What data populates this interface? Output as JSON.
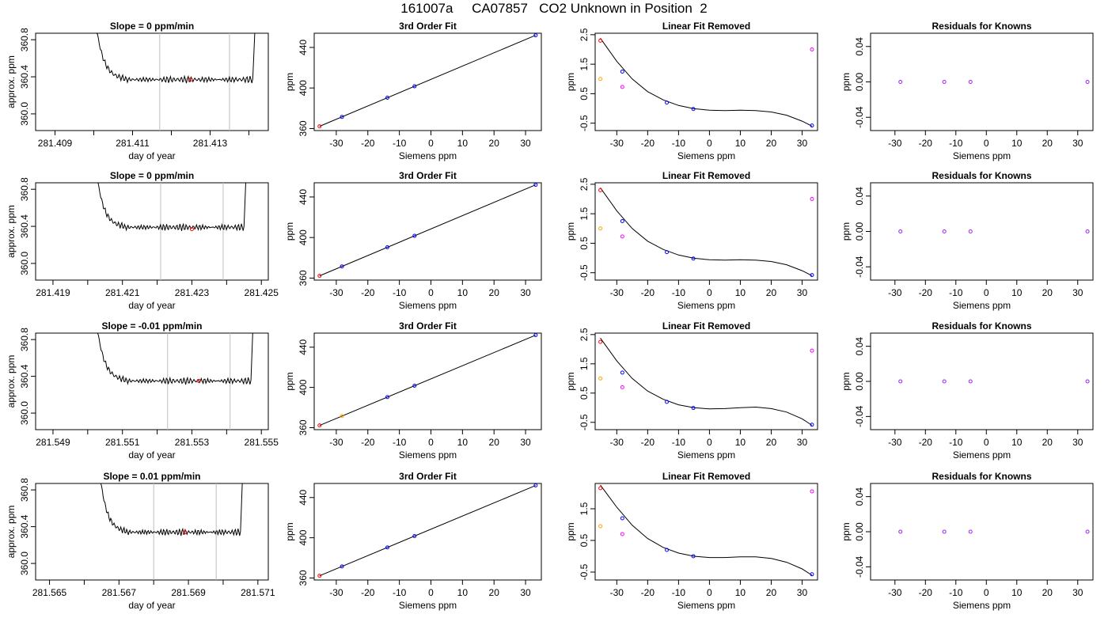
{
  "title": "161007a     CA07857   CO2 Unknown in Position  2",
  "ts_xlabel": "day of year",
  "ts_ylabel": "approx. ppm",
  "fit_title": "3rd Order Fit",
  "lin_title": "Linear Fit Removed",
  "res_title": "Residuals for Knowns",
  "siemens_xlabel": "Siemens ppm",
  "ppm_ylabel": "ppm",
  "colors": {
    "trace": "#000000",
    "gray_line": "#bebebe",
    "blue": "#0000ff",
    "red": "#ff0000",
    "orange": "#ffa500",
    "magenta": "#ff00ff",
    "purple": "#a020f0"
  },
  "chart_data": [
    {
      "type": "line",
      "panel": "timeseries",
      "row": 1,
      "title": "Slope =  0  ppm/min",
      "xlabel": "day of year",
      "ylabel": "approx. ppm",
      "xlim": [
        281.4085,
        281.4145
      ],
      "ylim": [
        359.82,
        360.87
      ],
      "x_ticks": [
        281.409,
        281.411,
        281.413
      ],
      "x_minor_ticks": [
        281.41,
        281.412,
        281.414
      ],
      "y_ticks": [
        360.0,
        360.4,
        360.8
      ],
      "plateau": 360.37,
      "trace_start": 281.41,
      "trace_end": 281.4141,
      "vlines": [
        281.4117,
        281.4135
      ],
      "marker": [
        281.4125,
        360.37
      ]
    },
    {
      "type": "scatter",
      "panel": "fit",
      "row": 1,
      "title": "3rd Order Fit",
      "xlabel": "Siemens ppm",
      "ylabel": "ppm",
      "xlim": [
        -37,
        35
      ],
      "ylim": [
        358,
        454
      ],
      "x_ticks": [
        -30,
        -20,
        -10,
        0,
        10,
        20,
        30
      ],
      "y_ticks": [
        360,
        400,
        440
      ],
      "points_blue": [
        [
          -28.2,
          371.4
        ],
        [
          -13.8,
          385.8
        ],
        [
          -5.2,
          394.4
        ],
        [
          33.2,
          432.8
        ]
      ],
      "points_red": [
        [
          -35.3,
          364.3
        ]
      ],
      "line": [
        [
          -35.3,
          362.2
        ],
        [
          33.2,
          452.0
        ]
      ]
    },
    {
      "type": "scatter",
      "panel": "linear_removed",
      "row": 1,
      "title": "Linear Fit Removed",
      "xlabel": "Siemens ppm",
      "ylabel": "ppm",
      "xlim": [
        -37,
        35
      ],
      "ylim": [
        -0.75,
        2.55
      ],
      "x_ticks": [
        -30,
        -20,
        -10,
        0,
        10,
        20,
        30
      ],
      "y_ticks": [
        -0.5,
        0.5,
        1.5,
        2.5
      ],
      "points_blue": [
        [
          -28.2,
          1.25
        ],
        [
          -13.8,
          0.2
        ],
        [
          -5.2,
          -0.02
        ],
        [
          33.2,
          -0.58
        ]
      ],
      "points_red": [
        [
          -35.3,
          2.3
        ]
      ],
      "points_orange": [
        [
          -35.3,
          1.0
        ]
      ],
      "points_magenta": [
        [
          -28.2,
          0.73
        ],
        [
          33.2,
          2.0
        ]
      ],
      "curve_x": [
        -35.3,
        -30,
        -25,
        -20,
        -15,
        -10,
        -5,
        0,
        5,
        10,
        15,
        20,
        25,
        30,
        33.2
      ],
      "curve_y": [
        2.38,
        1.6,
        1.0,
        0.57,
        0.29,
        0.1,
        -0.01,
        -0.06,
        -0.07,
        -0.06,
        -0.07,
        -0.12,
        -0.23,
        -0.43,
        -0.6
      ]
    },
    {
      "type": "scatter",
      "panel": "residuals",
      "row": 1,
      "title": "Residuals for Knowns",
      "xlabel": "Siemens ppm",
      "ylabel": "ppm",
      "xlim": [
        -38,
        35
      ],
      "ylim": [
        -0.055,
        0.055
      ],
      "x_ticks": [
        -30,
        -20,
        -10,
        0,
        10,
        20,
        30
      ],
      "y_ticks": [
        -0.04,
        0.0,
        0.04
      ],
      "points_purple": [
        [
          -28.2,
          0
        ],
        [
          -13.8,
          0
        ],
        [
          -5.2,
          0
        ],
        [
          33.2,
          0
        ]
      ]
    },
    {
      "type": "line",
      "panel": "timeseries",
      "row": 2,
      "title": "Slope =  0  ppm/min",
      "xlabel": "day of year",
      "ylabel": "approx. ppm",
      "xlim": [
        281.4185,
        281.4252
      ],
      "ylim": [
        359.82,
        360.87
      ],
      "x_ticks": [
        281.419,
        281.421,
        281.423,
        281.425
      ],
      "x_minor_ticks": [
        281.42,
        281.422,
        281.424
      ],
      "y_ticks": [
        360.0,
        360.4,
        360.8
      ],
      "plateau": 360.39,
      "trace_start": 281.4202,
      "trace_end": 281.4245,
      "vlines": [
        281.4221,
        281.4239
      ],
      "marker": [
        281.423,
        360.37
      ]
    },
    {
      "type": "scatter",
      "panel": "fit",
      "row": 2,
      "title": "3rd Order Fit",
      "xlabel": "Siemens ppm",
      "ylabel": "ppm",
      "xlim": [
        -37,
        35
      ],
      "ylim": [
        358,
        454
      ],
      "x_ticks": [
        -30,
        -20,
        -10,
        0,
        10,
        20,
        30
      ],
      "y_ticks": [
        360,
        400,
        440
      ],
      "points_blue": [
        [
          -28.2,
          371.4
        ],
        [
          -13.8,
          385.8
        ],
        [
          -5.2,
          394.4
        ],
        [
          33.2,
          432.8
        ]
      ],
      "points_red": [
        [
          -35.3,
          364.3
        ]
      ],
      "line": [
        [
          -35.3,
          362.2
        ],
        [
          33.2,
          452.0
        ]
      ]
    },
    {
      "type": "scatter",
      "panel": "linear_removed",
      "row": 2,
      "title": "Linear Fit Removed",
      "xlabel": "Siemens ppm",
      "ylabel": "ppm",
      "xlim": [
        -37,
        35
      ],
      "ylim": [
        -0.75,
        2.55
      ],
      "x_ticks": [
        -30,
        -20,
        -10,
        0,
        10,
        20,
        30
      ],
      "y_ticks": [
        -0.5,
        0.5,
        1.5,
        2.5
      ],
      "points_blue": [
        [
          -28.2,
          1.25
        ],
        [
          -13.8,
          0.2
        ],
        [
          -5.2,
          -0.02
        ],
        [
          33.2,
          -0.58
        ]
      ],
      "points_red": [
        [
          -35.3,
          2.3
        ]
      ],
      "points_orange": [
        [
          -35.3,
          1.0
        ]
      ],
      "points_magenta": [
        [
          -28.2,
          0.73
        ],
        [
          33.2,
          2.0
        ]
      ],
      "curve_x": [
        -35.3,
        -30,
        -25,
        -20,
        -15,
        -10,
        -5,
        0,
        5,
        10,
        15,
        20,
        25,
        30,
        33.2
      ],
      "curve_y": [
        2.38,
        1.6,
        1.0,
        0.57,
        0.29,
        0.1,
        -0.01,
        -0.06,
        -0.07,
        -0.06,
        -0.07,
        -0.12,
        -0.23,
        -0.43,
        -0.6
      ]
    },
    {
      "type": "scatter",
      "panel": "residuals",
      "row": 2,
      "title": "Residuals for Knowns",
      "xlabel": "Siemens ppm",
      "ylabel": "ppm",
      "xlim": [
        -38,
        35
      ],
      "ylim": [
        -0.055,
        0.055
      ],
      "x_ticks": [
        -30,
        -20,
        -10,
        0,
        10,
        20,
        30
      ],
      "y_ticks": [
        -0.04,
        0.0,
        0.04
      ],
      "points_purple": [
        [
          -28.2,
          0
        ],
        [
          -13.8,
          0
        ],
        [
          -5.2,
          0
        ],
        [
          33.2,
          0
        ]
      ]
    },
    {
      "type": "line",
      "panel": "timeseries",
      "row": 3,
      "title": "Slope =  -0.01  ppm/min",
      "xlabel": "day of year",
      "ylabel": "approx. ppm",
      "xlim": [
        281.5485,
        281.5552
      ],
      "ylim": [
        359.82,
        360.87
      ],
      "x_ticks": [
        281.549,
        281.551,
        281.553,
        281.555
      ],
      "x_minor_ticks": [
        281.55,
        281.552,
        281.554
      ],
      "y_ticks": [
        360.0,
        360.4,
        360.8
      ],
      "plateau": 360.35,
      "trace_start": 281.5502,
      "trace_end": 281.5547,
      "vlines": [
        281.5523,
        281.5541
      ],
      "marker": [
        281.5532,
        360.35
      ]
    },
    {
      "type": "scatter",
      "panel": "fit",
      "row": 3,
      "title": "3rd Order Fit",
      "xlabel": "Siemens ppm",
      "ylabel": "ppm",
      "xlim": [
        -37,
        35
      ],
      "ylim": [
        358,
        454
      ],
      "x_ticks": [
        -30,
        -20,
        -10,
        0,
        10,
        20,
        30
      ],
      "y_ticks": [
        360,
        400,
        440
      ],
      "points_blue": [
        [
          -13.8,
          385.8
        ],
        [
          -5.2,
          394.4
        ],
        [
          33.2,
          432.8
        ]
      ],
      "points_orange": [
        [
          -28.2,
          371.4
        ]
      ],
      "points_red": [
        [
          -35.3,
          364.3
        ]
      ],
      "line": [
        [
          -35.3,
          362.2
        ],
        [
          33.2,
          452.0
        ]
      ]
    },
    {
      "type": "scatter",
      "panel": "linear_removed",
      "row": 3,
      "title": "Linear Fit Removed",
      "xlabel": "Siemens ppm",
      "ylabel": "ppm",
      "xlim": [
        -37,
        35
      ],
      "ylim": [
        -0.75,
        2.55
      ],
      "x_ticks": [
        -30,
        -20,
        -10,
        0,
        10,
        20,
        30
      ],
      "y_ticks": [
        -0.5,
        0.5,
        1.5,
        2.5
      ],
      "points_blue": [
        [
          -28.2,
          1.2
        ],
        [
          -13.8,
          0.2
        ],
        [
          -5.2,
          -0.01
        ],
        [
          33.2,
          -0.58
        ]
      ],
      "points_red": [
        [
          -35.3,
          2.25
        ]
      ],
      "points_orange": [
        [
          -35.3,
          1.0
        ]
      ],
      "points_magenta": [
        [
          -28.2,
          0.7
        ],
        [
          33.2,
          1.95
        ]
      ],
      "curve_x": [
        -35.3,
        -30,
        -25,
        -20,
        -15,
        -10,
        -5,
        0,
        5,
        10,
        15,
        20,
        25,
        30,
        33.2
      ],
      "curve_y": [
        2.38,
        1.6,
        1.0,
        0.57,
        0.29,
        0.1,
        0.0,
        -0.04,
        -0.03,
        0.0,
        0.02,
        -0.03,
        -0.15,
        -0.38,
        -0.6
      ]
    },
    {
      "type": "scatter",
      "panel": "residuals",
      "row": 3,
      "title": "Residuals for Knowns",
      "xlabel": "Siemens ppm",
      "ylabel": "ppm",
      "xlim": [
        -38,
        35
      ],
      "ylim": [
        -0.055,
        0.055
      ],
      "x_ticks": [
        -30,
        -20,
        -10,
        0,
        10,
        20,
        30
      ],
      "y_ticks": [
        -0.04,
        0.0,
        0.04
      ],
      "points_purple": [
        [
          -28.2,
          0
        ],
        [
          -13.8,
          0
        ],
        [
          -5.2,
          0
        ],
        [
          33.2,
          0
        ]
      ]
    },
    {
      "type": "line",
      "panel": "timeseries",
      "row": 4,
      "title": "Slope =  0.01  ppm/min",
      "xlabel": "day of year",
      "ylabel": "approx. ppm",
      "xlim": [
        281.5646,
        281.5713
      ],
      "ylim": [
        359.82,
        360.87
      ],
      "x_ticks": [
        281.565,
        281.567,
        281.569,
        281.571
      ],
      "x_minor_ticks": [
        281.566,
        281.568,
        281.57
      ],
      "y_ticks": [
        360.0,
        360.4,
        360.8
      ],
      "plateau": 360.34,
      "trace_start": 281.5664,
      "trace_end": 281.5705,
      "vlines": [
        281.568,
        281.5698
      ],
      "marker": [
        281.5689,
        360.34
      ]
    },
    {
      "type": "scatter",
      "panel": "fit",
      "row": 4,
      "title": "3rd Order Fit",
      "xlabel": "Siemens ppm",
      "ylabel": "ppm",
      "xlim": [
        -37,
        35
      ],
      "ylim": [
        358,
        454
      ],
      "x_ticks": [
        -30,
        -20,
        -10,
        0,
        10,
        20,
        30
      ],
      "y_ticks": [
        360,
        400,
        440
      ],
      "points_blue": [
        [
          -28.2,
          371.4
        ],
        [
          -13.8,
          385.8
        ],
        [
          -5.2,
          394.4
        ],
        [
          33.2,
          432.8
        ]
      ],
      "points_red": [
        [
          -35.3,
          364.3
        ]
      ],
      "line": [
        [
          -35.3,
          362.2
        ],
        [
          33.2,
          452.0
        ]
      ]
    },
    {
      "type": "scatter",
      "panel": "linear_removed",
      "row": 4,
      "title": "Linear Fit Removed",
      "xlabel": "Siemens ppm",
      "ylabel": "ppm",
      "xlim": [
        -37,
        35
      ],
      "ylim": [
        -0.75,
        2.3
      ],
      "x_ticks": [
        -30,
        -20,
        -10,
        0,
        10,
        20,
        30
      ],
      "y_ticks": [
        -0.5,
        0.5,
        1.5
      ],
      "points_blue": [
        [
          -28.2,
          1.2
        ],
        [
          -13.8,
          0.2
        ],
        [
          -5.2,
          0.0
        ],
        [
          33.2,
          -0.57
        ]
      ],
      "points_red": [
        [
          -35.3,
          2.15
        ]
      ],
      "points_orange": [
        [
          -35.3,
          0.95
        ]
      ],
      "points_magenta": [
        [
          -28.2,
          0.7
        ],
        [
          33.2,
          2.05
        ]
      ],
      "curve_x": [
        -35.3,
        -30,
        -25,
        -20,
        -15,
        -10,
        -5,
        0,
        5,
        10,
        15,
        20,
        25,
        30,
        33.2
      ],
      "curve_y": [
        2.25,
        1.55,
        0.98,
        0.56,
        0.28,
        0.1,
        0.0,
        -0.04,
        -0.04,
        -0.02,
        -0.02,
        -0.07,
        -0.19,
        -0.4,
        -0.6
      ]
    },
    {
      "type": "scatter",
      "panel": "residuals",
      "row": 4,
      "title": "Residuals for Knowns",
      "xlabel": "Siemens ppm",
      "ylabel": "ppm",
      "xlim": [
        -38,
        35
      ],
      "ylim": [
        -0.055,
        0.055
      ],
      "x_ticks": [
        -30,
        -20,
        -10,
        0,
        10,
        20,
        30
      ],
      "y_ticks": [
        -0.04,
        0.0,
        0.04
      ],
      "points_purple": [
        [
          -28.2,
          0
        ],
        [
          -13.8,
          0
        ],
        [
          -5.2,
          0
        ],
        [
          33.2,
          0
        ]
      ]
    }
  ]
}
